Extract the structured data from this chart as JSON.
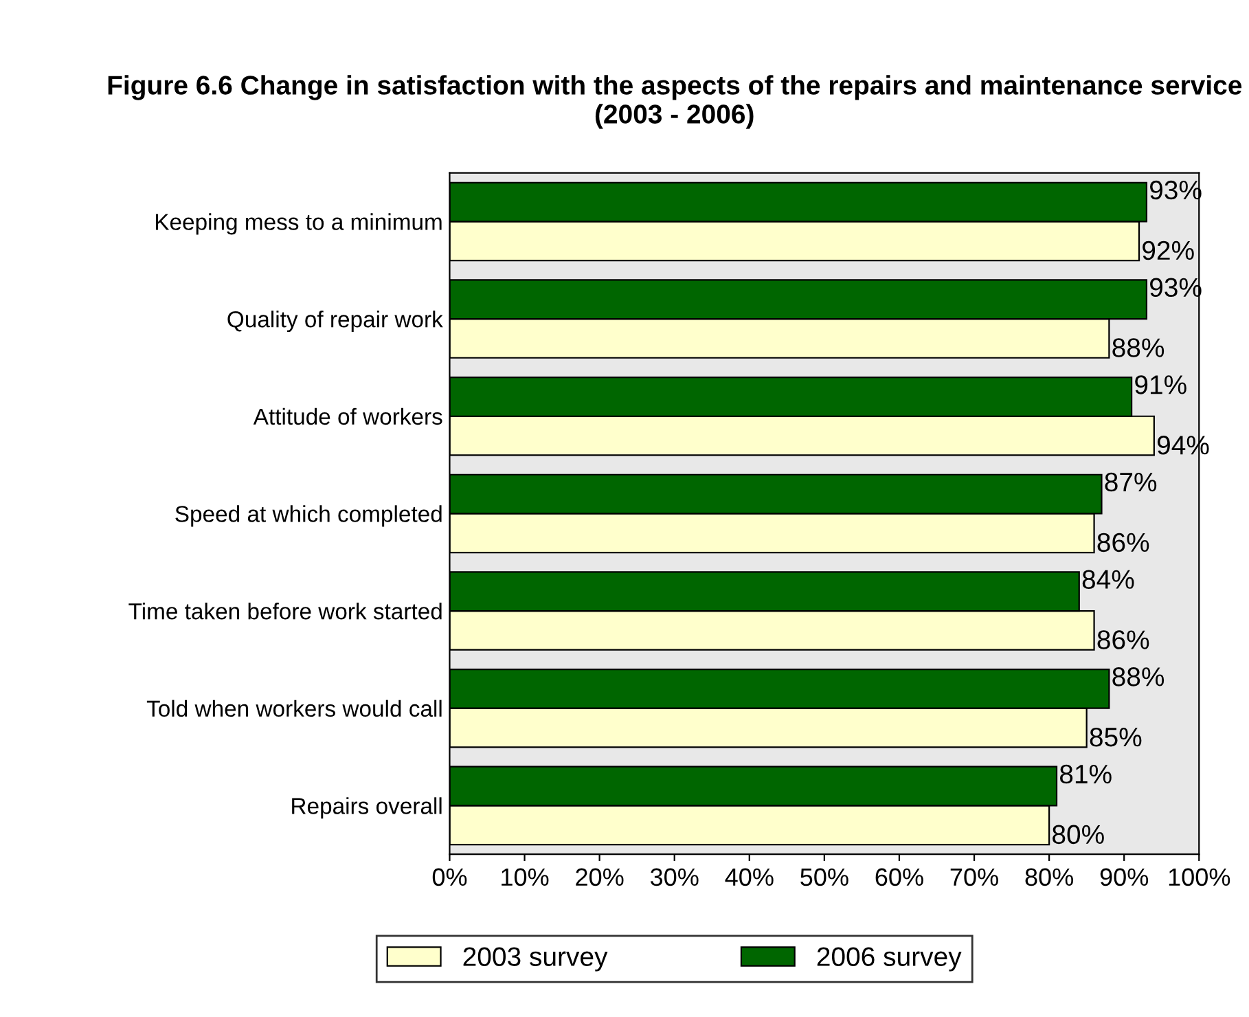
{
  "chart_data": {
    "type": "bar",
    "orientation": "horizontal",
    "title": "Figure 6.6 Change in satisfaction with the aspects of the repairs and maintenance service (2003 - 2006)",
    "categories": [
      "Keeping mess to a minimum",
      "Quality of repair work",
      "Attitude of workers",
      "Speed at which completed",
      "Time taken before work started",
      "Told when workers would call",
      "Repairs overall"
    ],
    "series": [
      {
        "name": "2003 survey",
        "color": "#ffffcc",
        "values": [
          92,
          88,
          94,
          86,
          86,
          85,
          80
        ],
        "value_labels": [
          "92%",
          "88%",
          "94%",
          "86%",
          "86%",
          "85%",
          "80%"
        ]
      },
      {
        "name": "2006 survey",
        "color": "#006600",
        "values": [
          93,
          93,
          91,
          87,
          84,
          88,
          81
        ],
        "value_labels": [
          "93%",
          "93%",
          "91%",
          "87%",
          "84%",
          "88%",
          "81%"
        ]
      }
    ],
    "xlim": [
      0,
      100
    ],
    "xticks": [
      {
        "value": 0,
        "label": "0%"
      },
      {
        "value": 10,
        "label": "10%"
      },
      {
        "value": 20,
        "label": "20%"
      },
      {
        "value": 30,
        "label": "30%"
      },
      {
        "value": 40,
        "label": "40%"
      },
      {
        "value": 50,
        "label": "50%"
      },
      {
        "value": 60,
        "label": "60%"
      },
      {
        "value": 70,
        "label": "70%"
      },
      {
        "value": 80,
        "label": "80%"
      },
      {
        "value": 90,
        "label": "90%"
      },
      {
        "value": 100,
        "label": "100%"
      }
    ],
    "grid": false,
    "legend": "bottom"
  }
}
